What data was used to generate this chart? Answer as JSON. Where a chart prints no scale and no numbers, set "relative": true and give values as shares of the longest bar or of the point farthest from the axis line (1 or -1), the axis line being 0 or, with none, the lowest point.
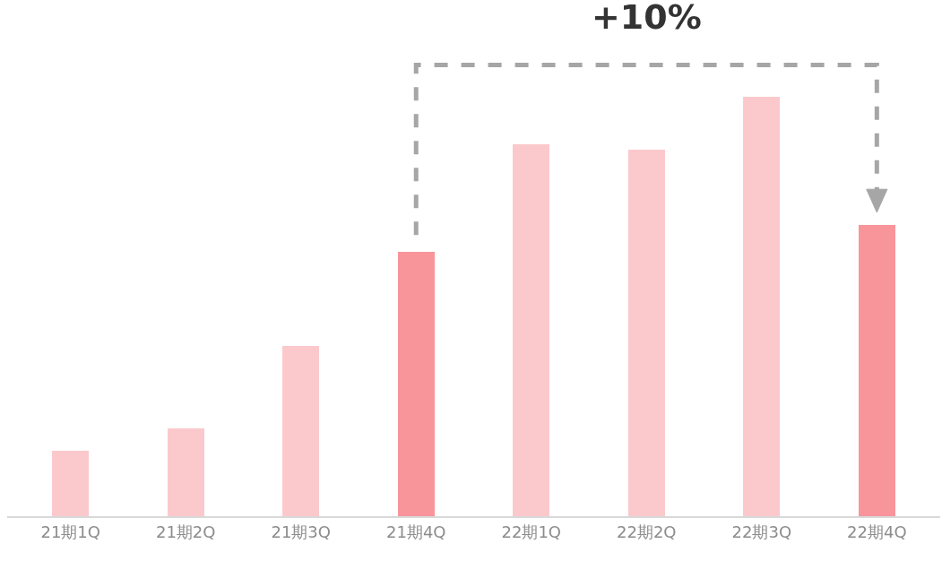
{
  "chart_data": {
    "type": "bar",
    "relative": true,
    "categories": [
      "21期1Q",
      "21期2Q",
      "21期3Q",
      "21期4Q",
      "22期1Q",
      "22期2Q",
      "22期3Q",
      "22期4Q"
    ],
    "values": [
      0.156,
      0.209,
      0.406,
      0.63,
      0.887,
      0.874,
      1,
      0.694
    ],
    "colors": [
      "#fbc9cc",
      "#fbc9cc",
      "#fbc9cc",
      "#f8959b",
      "#fbc9cc",
      "#fbc9cc",
      "#fbc9cc",
      "#f8959b"
    ],
    "annotations": [
      "+10%"
    ],
    "legend": false
  }
}
